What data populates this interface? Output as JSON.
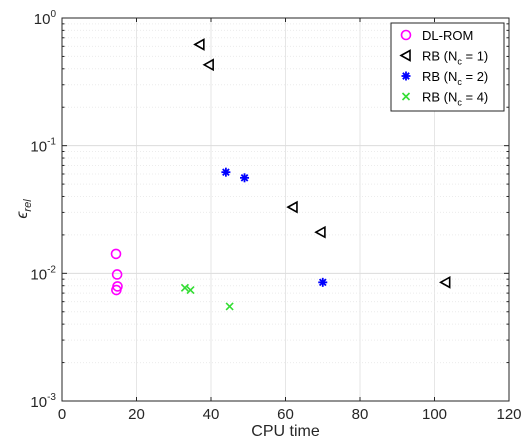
{
  "chart_data": {
    "type": "scatter",
    "title": "",
    "xlabel": "CPU time",
    "ylabel_base": "ϵ",
    "ylabel_sub": "rel",
    "xlim": [
      0,
      120
    ],
    "ylim": [
      0.001,
      1
    ],
    "yscale": "log",
    "grid": "on (major and minor)",
    "legend_placement": "top-right",
    "x_ticks": [
      0,
      20,
      40,
      60,
      80,
      100,
      120
    ],
    "x_tick_labels": [
      "0",
      "20",
      "40",
      "60",
      "80",
      "100",
      "120"
    ],
    "y_tick_labels": [
      {
        "base": "10",
        "exp": "0",
        "value": 1
      },
      {
        "base": "10",
        "exp": "-1",
        "value": 0.1
      },
      {
        "base": "10",
        "exp": "-2",
        "value": 0.01
      },
      {
        "base": "10",
        "exp": "-3",
        "value": 0.001
      }
    ],
    "series": [
      {
        "name": "DL-ROM",
        "marker": "circle",
        "color": "#ff00ff",
        "points": [
          [
            14.5,
            0.0142
          ],
          [
            14.8,
            0.0098
          ],
          [
            14.9,
            0.0079
          ],
          [
            14.6,
            0.0074
          ]
        ]
      },
      {
        "name": "RB (N",
        "name_sub": "c",
        "name_suffix": " = 1)",
        "marker": "triangle-left",
        "color": "#000000",
        "points": [
          [
            37,
            0.62
          ],
          [
            39.5,
            0.43
          ],
          [
            62,
            0.033
          ],
          [
            69.5,
            0.021
          ],
          [
            103,
            0.0085
          ]
        ]
      },
      {
        "name": "RB (N",
        "name_sub": "c",
        "name_suffix": " = 2)",
        "marker": "asterisk",
        "color": "#0000ff",
        "points": [
          [
            44,
            0.062
          ],
          [
            49,
            0.056
          ],
          [
            70,
            0.0085
          ]
        ]
      },
      {
        "name": "RB (N",
        "name_sub": "c",
        "name_suffix": " = 4)",
        "marker": "x",
        "color": "#33dd33",
        "points": [
          [
            33,
            0.0077
          ],
          [
            34.5,
            0.0074
          ],
          [
            45,
            0.0055
          ]
        ]
      }
    ]
  }
}
